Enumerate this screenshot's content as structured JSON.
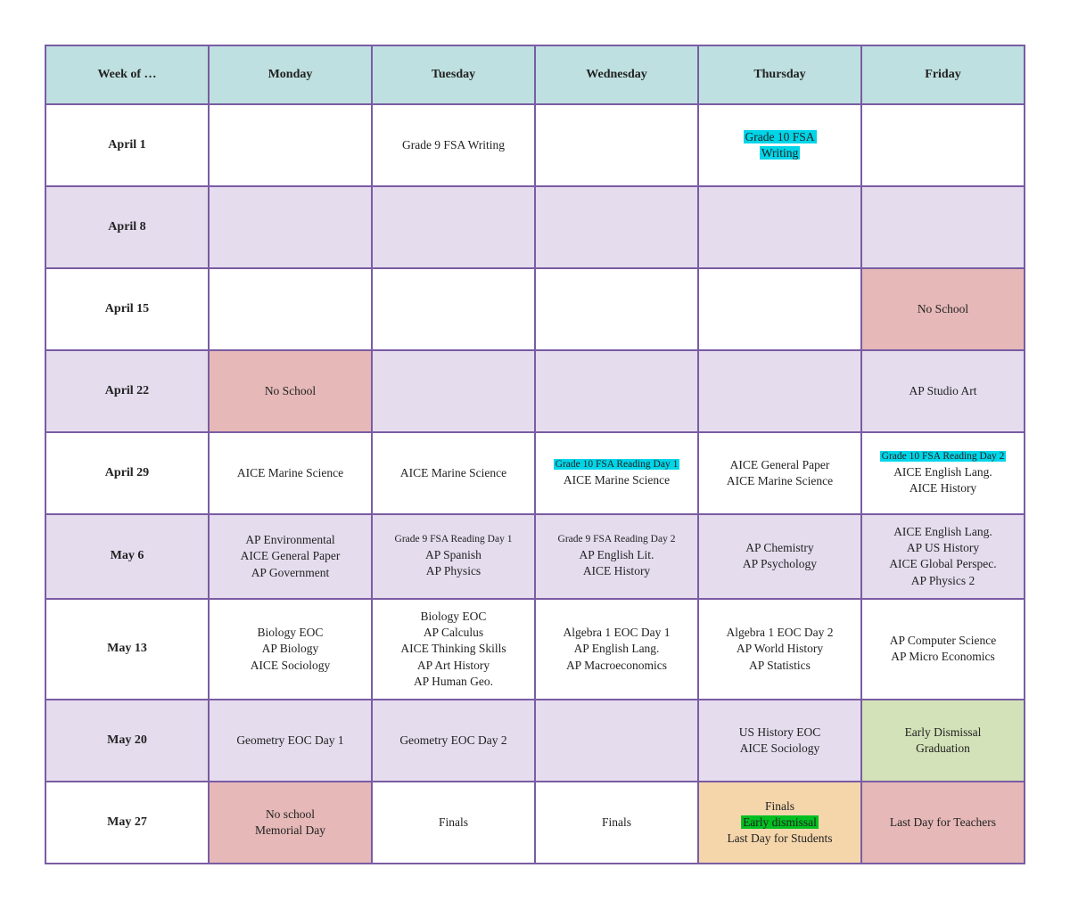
{
  "table": {
    "headers": [
      "Week of …",
      "Monday",
      "Tuesday",
      "Wednesday",
      "Thursday",
      "Friday"
    ],
    "header_bg": "#bfe0e0",
    "border_color": "#7a5ca3",
    "alt_bg": "#e5dcee",
    "red_bg": "#e6b8b8",
    "green_bg": "#d3e2b8",
    "orange_bg": "#f5d6ab",
    "highlight_cyan": "#00d5e8",
    "highlight_green": "#00c020",
    "rows": [
      {
        "week": "April 1",
        "alt": false,
        "cells": [
          {
            "lines": [],
            "style": "plain",
            "blackborder": true
          },
          {
            "lines": [
              {
                "text": "Grade 9 FSA Writing"
              }
            ],
            "style": "plain",
            "blackborder": true
          },
          {
            "lines": [],
            "style": "plain"
          },
          {
            "lines": [
              {
                "text": "Grade 10 FSA",
                "hl": "cyan"
              },
              {
                "text": "Writing",
                "hl": "cyan"
              }
            ],
            "style": "plain"
          },
          {
            "lines": [],
            "style": "plain"
          }
        ]
      },
      {
        "week": "April 8",
        "alt": true,
        "cells": [
          {
            "lines": [],
            "style": "alt",
            "blackborder": true
          },
          {
            "lines": [],
            "style": "alt",
            "blackborder": true
          },
          {
            "lines": [],
            "style": "alt"
          },
          {
            "lines": [],
            "style": "alt"
          },
          {
            "lines": [],
            "style": "alt"
          }
        ]
      },
      {
        "week": "April 15",
        "alt": false,
        "cells": [
          {
            "lines": [],
            "style": "plain"
          },
          {
            "lines": [],
            "style": "plain"
          },
          {
            "lines": [],
            "style": "plain"
          },
          {
            "lines": [],
            "style": "plain"
          },
          {
            "lines": [
              {
                "text": "No School"
              }
            ],
            "style": "red"
          }
        ]
      },
      {
        "week": "April 22",
        "alt": true,
        "cells": [
          {
            "lines": [
              {
                "text": "No School"
              }
            ],
            "style": "red"
          },
          {
            "lines": [],
            "style": "alt"
          },
          {
            "lines": [],
            "style": "alt"
          },
          {
            "lines": [],
            "style": "alt"
          },
          {
            "lines": [
              {
                "text": "AP Studio Art"
              }
            ],
            "style": "alt"
          }
        ]
      },
      {
        "week": "April 29",
        "alt": false,
        "cells": [
          {
            "lines": [
              {
                "text": "AICE Marine Science"
              }
            ],
            "style": "plain"
          },
          {
            "lines": [
              {
                "text": "AICE Marine Science"
              }
            ],
            "style": "plain"
          },
          {
            "lines": [
              {
                "text": "Grade 10 FSA Reading Day 1",
                "hl": "cyan",
                "small": true
              },
              {
                "text": "AICE Marine Science"
              }
            ],
            "style": "plain"
          },
          {
            "lines": [
              {
                "text": "AICE General Paper"
              },
              {
                "text": "AICE Marine Science"
              }
            ],
            "style": "plain"
          },
          {
            "lines": [
              {
                "text": "Grade 10 FSA Reading Day 2",
                "hl": "cyan",
                "small": true
              },
              {
                "text": "AICE English Lang."
              },
              {
                "text": "AICE History"
              }
            ],
            "style": "plain"
          }
        ]
      },
      {
        "week": "May 6",
        "alt": true,
        "cells": [
          {
            "lines": [
              {
                "text": "AP Environmental"
              },
              {
                "text": "AICE General Paper"
              },
              {
                "text": "AP Government"
              }
            ],
            "style": "alt"
          },
          {
            "lines": [
              {
                "text": "Grade 9 FSA Reading Day 1",
                "small": true
              },
              {
                "text": "AP Spanish"
              },
              {
                "text": "AP Physics"
              }
            ],
            "style": "alt"
          },
          {
            "lines": [
              {
                "text": "Grade 9 FSA Reading Day 2",
                "small": true
              },
              {
                "text": "AP English Lit."
              },
              {
                "text": "AICE History"
              }
            ],
            "style": "alt"
          },
          {
            "lines": [
              {
                "text": "AP Chemistry"
              },
              {
                "text": "AP Psychology"
              }
            ],
            "style": "alt"
          },
          {
            "lines": [
              {
                "text": "AICE English Lang."
              },
              {
                "text": "AP US History"
              },
              {
                "text": "AICE Global Perspec."
              },
              {
                "text": "AP Physics 2"
              }
            ],
            "style": "alt"
          }
        ]
      },
      {
        "week": "May 13",
        "alt": false,
        "cells": [
          {
            "lines": [
              {
                "text": "Biology EOC"
              },
              {
                "text": "AP Biology"
              },
              {
                "text": "AICE Sociology"
              }
            ],
            "style": "plain"
          },
          {
            "lines": [
              {
                "text": "Biology EOC"
              },
              {
                "text": "AP Calculus"
              },
              {
                "text": "AICE Thinking Skills"
              },
              {
                "text": "AP Art History"
              },
              {
                "text": "AP Human Geo."
              }
            ],
            "style": "plain"
          },
          {
            "lines": [
              {
                "text": "Algebra 1 EOC Day 1"
              },
              {
                "text": "AP English Lang."
              },
              {
                "text": "AP Macroeconomics"
              }
            ],
            "style": "plain"
          },
          {
            "lines": [
              {
                "text": "Algebra 1 EOC Day 2"
              },
              {
                "text": "AP World History"
              },
              {
                "text": "AP Statistics"
              }
            ],
            "style": "plain"
          },
          {
            "lines": [
              {
                "text": "AP Computer Science"
              },
              {
                "text": "AP Micro Economics"
              }
            ],
            "style": "plain"
          }
        ]
      },
      {
        "week": "May 20",
        "alt": true,
        "cells": [
          {
            "lines": [
              {
                "text": "Geometry EOC Day 1"
              }
            ],
            "style": "alt"
          },
          {
            "lines": [
              {
                "text": "Geometry EOC Day 2"
              }
            ],
            "style": "alt"
          },
          {
            "lines": [],
            "style": "alt"
          },
          {
            "lines": [
              {
                "text": "US History EOC"
              },
              {
                "text": "AICE Sociology"
              }
            ],
            "style": "alt"
          },
          {
            "lines": [
              {
                "text": "Early Dismissal"
              },
              {
                "text": "Graduation"
              }
            ],
            "style": "green"
          }
        ]
      },
      {
        "week": "May 27",
        "alt": false,
        "cells": [
          {
            "lines": [
              {
                "text": "No school"
              },
              {
                "text": "Memorial Day"
              }
            ],
            "style": "red"
          },
          {
            "lines": [
              {
                "text": "Finals"
              }
            ],
            "style": "plain"
          },
          {
            "lines": [
              {
                "text": "Finals"
              }
            ],
            "style": "plain"
          },
          {
            "lines": [
              {
                "text": "Finals"
              },
              {
                "text": "Early dismissal",
                "hl": "green"
              },
              {
                "text": "Last Day for Students"
              }
            ],
            "style": "orange"
          },
          {
            "lines": [
              {
                "text": "Last Day for Teachers"
              }
            ],
            "style": "red"
          }
        ]
      }
    ]
  }
}
